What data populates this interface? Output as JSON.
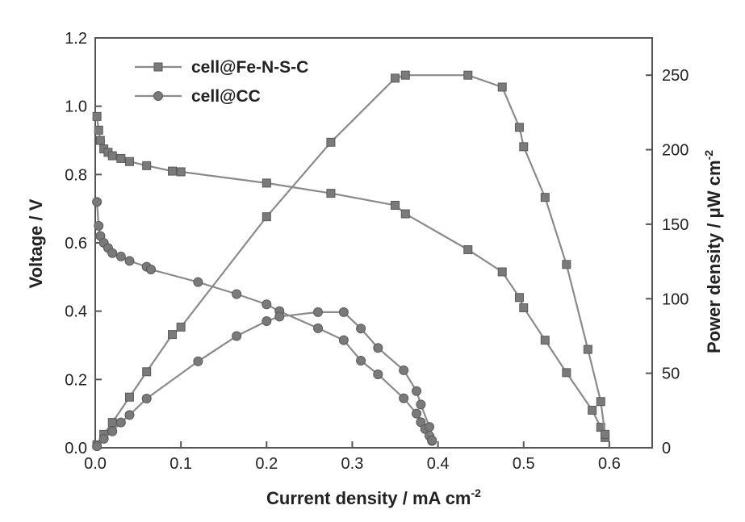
{
  "chart_data": {
    "type": "line",
    "xlabel": "Current density / mA cm",
    "xlabel_sup": "-2",
    "ylabel_left": "Voltage / V",
    "ylabel_right": "Power density / μW cm",
    "ylabel_right_sup": "-2",
    "xlim": [
      0.0,
      0.65
    ],
    "ylim_left": [
      0.0,
      1.2
    ],
    "ylim_right": [
      0,
      275
    ],
    "x_ticks": [
      "0.0",
      "0.1",
      "0.2",
      "0.3",
      "0.4",
      "0.5",
      "0.6"
    ],
    "x_tick_values": [
      0.0,
      0.1,
      0.2,
      0.3,
      0.4,
      0.5,
      0.6
    ],
    "y_left_ticks": [
      "0.0",
      "0.2",
      "0.4",
      "0.6",
      "0.8",
      "1.0",
      "1.2"
    ],
    "y_left_tick_values": [
      0.0,
      0.2,
      0.4,
      0.6,
      0.8,
      1.0,
      1.2
    ],
    "y_right_ticks": [
      "0",
      "50",
      "100",
      "150",
      "200",
      "250"
    ],
    "y_right_tick_values": [
      0,
      50,
      100,
      150,
      200,
      250
    ],
    "legend": {
      "placement": "top-left",
      "entries": [
        {
          "label": "cell@Fe-N-S-C",
          "marker": "square"
        },
        {
          "label": "cell@CC",
          "marker": "circle"
        }
      ]
    },
    "line_color": "#8a8a8a",
    "marker_color": "#7a7a7a",
    "series": [
      {
        "name": "cell@Fe-N-S-C",
        "kind": "polarization",
        "axis": "left",
        "marker": "square",
        "x": [
          0.002,
          0.004,
          0.006,
          0.01,
          0.015,
          0.02,
          0.03,
          0.04,
          0.06,
          0.09,
          0.1,
          0.2,
          0.275,
          0.35,
          0.362,
          0.435,
          0.475,
          0.495,
          0.5,
          0.525,
          0.55,
          0.58,
          0.59,
          0.595
        ],
        "y": [
          0.97,
          0.93,
          0.9,
          0.875,
          0.865,
          0.855,
          0.847,
          0.838,
          0.826,
          0.81,
          0.808,
          0.775,
          0.745,
          0.71,
          0.685,
          0.58,
          0.515,
          0.44,
          0.41,
          0.315,
          0.22,
          0.11,
          0.06,
          0.03
        ]
      },
      {
        "name": "cell@Fe-N-S-C",
        "kind": "power",
        "axis": "right",
        "marker": "square",
        "x": [
          0.002,
          0.01,
          0.02,
          0.04,
          0.06,
          0.09,
          0.1,
          0.2,
          0.275,
          0.35,
          0.362,
          0.435,
          0.475,
          0.495,
          0.5,
          0.525,
          0.55,
          0.575,
          0.59,
          0.595
        ],
        "y": [
          2,
          9,
          17,
          34,
          51,
          76,
          81,
          155,
          205,
          248,
          250,
          250,
          242,
          215,
          202,
          168,
          123,
          66,
          31,
          9
        ]
      },
      {
        "name": "cell@CC",
        "kind": "polarization",
        "axis": "left",
        "marker": "circle",
        "x": [
          0.002,
          0.004,
          0.006,
          0.01,
          0.015,
          0.02,
          0.03,
          0.04,
          0.06,
          0.065,
          0.12,
          0.165,
          0.2,
          0.215,
          0.26,
          0.29,
          0.31,
          0.33,
          0.36,
          0.375,
          0.38,
          0.385,
          0.39,
          0.393
        ],
        "y": [
          0.72,
          0.65,
          0.62,
          0.6,
          0.585,
          0.57,
          0.56,
          0.547,
          0.53,
          0.522,
          0.485,
          0.45,
          0.42,
          0.4,
          0.35,
          0.315,
          0.255,
          0.215,
          0.145,
          0.1,
          0.075,
          0.055,
          0.035,
          0.02
        ]
      },
      {
        "name": "cell@CC",
        "kind": "power",
        "axis": "right",
        "marker": "circle",
        "x": [
          0.002,
          0.01,
          0.02,
          0.03,
          0.04,
          0.06,
          0.12,
          0.165,
          0.2,
          0.215,
          0.26,
          0.29,
          0.31,
          0.33,
          0.36,
          0.375,
          0.38,
          0.39,
          0.393
        ],
        "y": [
          1,
          6,
          11,
          17,
          22,
          33,
          58,
          75,
          85,
          88,
          91,
          91,
          80,
          67,
          52,
          38,
          29,
          14,
          5
        ]
      }
    ]
  }
}
